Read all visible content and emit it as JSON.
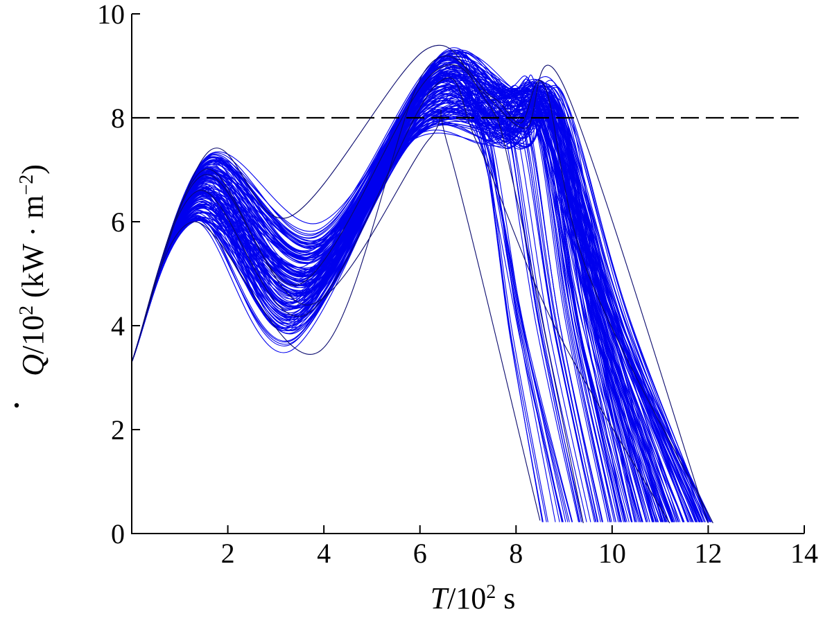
{
  "chart_data": {
    "type": "line",
    "title": "",
    "xlabel": {
      "var": "T",
      "rest": "/10",
      "sup": "2",
      "unit": " s"
    },
    "ylabel": {
      "var": "Q",
      "rest": "/10",
      "sup": "2",
      "unit": " (kW · m",
      "unit_sup": "−2",
      "unit_close": ")"
    },
    "xlim": [
      0,
      14
    ],
    "ylim": [
      0,
      10
    ],
    "xticks": [
      2,
      4,
      6,
      8,
      10,
      12,
      14
    ],
    "yticks": [
      0,
      2,
      4,
      6,
      8,
      10
    ],
    "xtick_labels": [
      "2",
      "4",
      "6",
      "8",
      "10",
      "12",
      "14"
    ],
    "ytick_labels": [
      "0",
      "2",
      "4",
      "6",
      "8",
      "10"
    ],
    "grid": false,
    "series_color": "#0000ee",
    "edge_color": "#0a0a6e",
    "threshold": {
      "y": 8,
      "x_end": 14,
      "style": "dashed",
      "color": "#000000"
    },
    "ensemble": {
      "count": 160,
      "start": [
        0,
        3.3
      ],
      "series": [
        {
          "x": [
            0,
            1.3,
            3.9,
            6.1,
            7.5,
            8.1,
            8.6,
            9.5,
            12.1
          ],
          "y": [
            3.3,
            6.0,
            3.5,
            8.9,
            8.4,
            7.9,
            8.6,
            5.0,
            0.2
          ]
        },
        {
          "x": [
            0,
            1.6,
            3.3,
            6.1,
            7.3,
            8.2,
            9.0,
            12.0
          ],
          "y": [
            3.3,
            7.35,
            6.1,
            9.3,
            8.5,
            7.8,
            8.6,
            0.2
          ]
        },
        {
          "x": [
            0,
            1.5,
            3.7,
            6.2,
            6.6,
            8.5
          ],
          "y": [
            3.3,
            6.9,
            4.4,
            7.6,
            7.4,
            0.25
          ]
        },
        {
          "x": [
            0,
            1.4,
            3.6,
            6.3,
            7.2,
            8.8,
            11.2
          ],
          "y": [
            3.3,
            6.6,
            4.2,
            8.6,
            7.5,
            4.0,
            0.2
          ]
        },
        {
          "x": [
            0,
            1.5,
            3.5,
            6.2,
            7.4,
            8.0,
            9.4
          ],
          "y": [
            3.3,
            7.0,
            4.8,
            8.8,
            8.3,
            6.5,
            0.2
          ]
        }
      ]
    }
  }
}
